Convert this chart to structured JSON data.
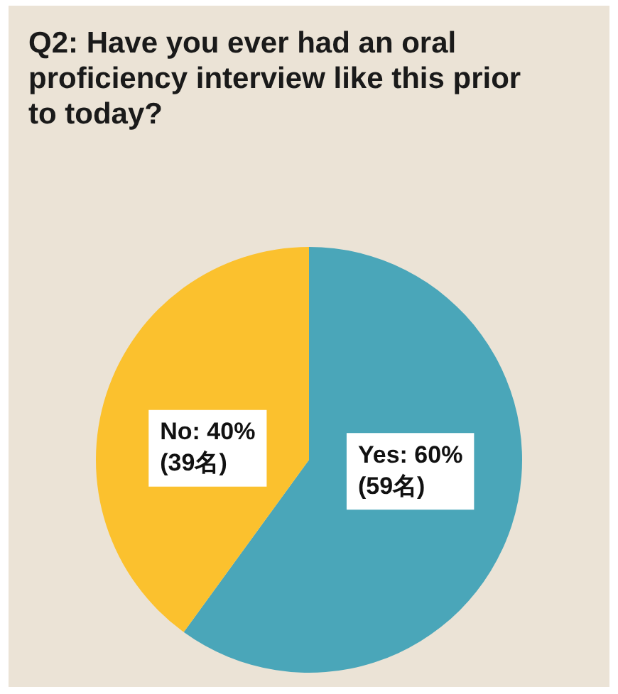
{
  "chart_data": {
    "type": "pie",
    "title": "Q2: Have you ever had an oral proficiency interview like this prior to today?",
    "categories": [
      "Yes",
      "No"
    ],
    "values": [
      60,
      40
    ],
    "colors": [
      "#4aa6b9",
      "#fbc12e"
    ],
    "value_labels": [
      "60%\n(59名)",
      "40%\n(39名)"
    ],
    "legend": false
  }
}
